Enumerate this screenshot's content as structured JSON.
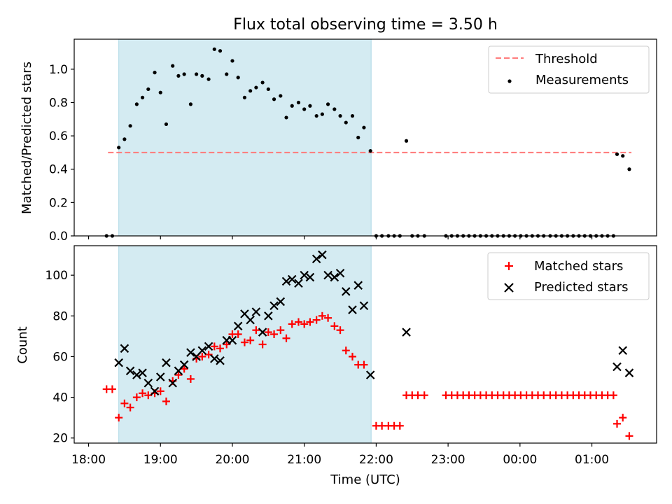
{
  "title": "Flux total observing time = 3.50 h",
  "colors": {
    "observing_window": "#add8e6",
    "threshold": "#ff7f7f",
    "measurements": "#000000",
    "matched": "#ff0000",
    "predicted": "#000000"
  },
  "chart_data": [
    {
      "type": "scatter",
      "ylabel": "Matched/Predicted stars",
      "xlabel": "",
      "xlim": [
        17.8,
        25.9
      ],
      "ylim": [
        0,
        1.18
      ],
      "yticks": [
        "0.0",
        "0.2",
        "0.4",
        "0.6",
        "0.8",
        "1.0"
      ],
      "legend_position": "top-right",
      "observing_window": [
        18.42,
        21.93
      ],
      "threshold": {
        "name": "Threshold",
        "value": 0.5,
        "x_range": [
          18.27,
          25.55
        ],
        "style": "dashed"
      },
      "series": [
        {
          "name": "Measurements",
          "marker": "dot",
          "points": [
            [
              18.25,
              0.0
            ],
            [
              18.33,
              0.0
            ],
            [
              18.42,
              0.53
            ],
            [
              18.5,
              0.58
            ],
            [
              18.58,
              0.66
            ],
            [
              18.67,
              0.79
            ],
            [
              18.75,
              0.83
            ],
            [
              18.83,
              0.88
            ],
            [
              18.92,
              0.98
            ],
            [
              19.0,
              0.86
            ],
            [
              19.08,
              0.67
            ],
            [
              19.17,
              1.02
            ],
            [
              19.25,
              0.96
            ],
            [
              19.33,
              0.97
            ],
            [
              19.42,
              0.79
            ],
            [
              19.5,
              0.97
            ],
            [
              19.58,
              0.96
            ],
            [
              19.67,
              0.94
            ],
            [
              19.75,
              1.12
            ],
            [
              19.83,
              1.11
            ],
            [
              19.92,
              0.97
            ],
            [
              20.0,
              1.05
            ],
            [
              20.08,
              0.95
            ],
            [
              20.17,
              0.83
            ],
            [
              20.25,
              0.87
            ],
            [
              20.33,
              0.89
            ],
            [
              20.42,
              0.92
            ],
            [
              20.5,
              0.88
            ],
            [
              20.58,
              0.82
            ],
            [
              20.67,
              0.84
            ],
            [
              20.75,
              0.71
            ],
            [
              20.83,
              0.78
            ],
            [
              20.92,
              0.8
            ],
            [
              21.0,
              0.76
            ],
            [
              21.08,
              0.78
            ],
            [
              21.17,
              0.72
            ],
            [
              21.25,
              0.73
            ],
            [
              21.33,
              0.79
            ],
            [
              21.42,
              0.76
            ],
            [
              21.5,
              0.72
            ],
            [
              21.58,
              0.68
            ],
            [
              21.67,
              0.72
            ],
            [
              21.75,
              0.59
            ],
            [
              21.83,
              0.65
            ],
            [
              21.92,
              0.51
            ],
            [
              22.0,
              0.0
            ],
            [
              22.08,
              0.0
            ],
            [
              22.17,
              0.0
            ],
            [
              22.25,
              0.0
            ],
            [
              22.33,
              0.0
            ],
            [
              22.42,
              0.57
            ],
            [
              22.5,
              0.0
            ],
            [
              22.58,
              0.0
            ],
            [
              22.67,
              0.0
            ],
            [
              22.97,
              0.0
            ],
            [
              23.05,
              0.0
            ],
            [
              23.13,
              0.0
            ],
            [
              23.21,
              0.0
            ],
            [
              23.29,
              0.0
            ],
            [
              23.37,
              0.0
            ],
            [
              23.45,
              0.0
            ],
            [
              23.53,
              0.0
            ],
            [
              23.61,
              0.0
            ],
            [
              23.69,
              0.0
            ],
            [
              23.77,
              0.0
            ],
            [
              23.85,
              0.0
            ],
            [
              23.93,
              0.0
            ],
            [
              24.01,
              0.0
            ],
            [
              24.09,
              0.0
            ],
            [
              24.17,
              0.0
            ],
            [
              24.25,
              0.0
            ],
            [
              24.33,
              0.0
            ],
            [
              24.42,
              0.0
            ],
            [
              24.5,
              0.0
            ],
            [
              24.58,
              0.0
            ],
            [
              24.66,
              0.0
            ],
            [
              24.74,
              0.0
            ],
            [
              24.82,
              0.0
            ],
            [
              24.9,
              0.0
            ],
            [
              24.98,
              0.0
            ],
            [
              25.06,
              0.0
            ],
            [
              25.14,
              0.0
            ],
            [
              25.22,
              0.0
            ],
            [
              25.3,
              0.0
            ],
            [
              25.35,
              0.49
            ],
            [
              25.43,
              0.48
            ],
            [
              25.52,
              0.4
            ]
          ]
        }
      ]
    },
    {
      "type": "scatter",
      "xlabel": "Time (UTC)",
      "ylabel": "Count",
      "xlim": [
        17.8,
        25.9
      ],
      "ylim": [
        17.5,
        114.5
      ],
      "yticks": [
        "20",
        "40",
        "60",
        "80",
        "100"
      ],
      "xtick_values": [
        18,
        19,
        20,
        21,
        22,
        23,
        24,
        25
      ],
      "xticks": [
        "18:00",
        "19:00",
        "20:00",
        "21:00",
        "22:00",
        "23:00",
        "00:00",
        "01:00"
      ],
      "legend_position": "top-right",
      "observing_window": [
        18.42,
        21.93
      ],
      "series": [
        {
          "name": "Matched stars",
          "marker": "plus",
          "points": [
            [
              18.25,
              44
            ],
            [
              18.33,
              44
            ],
            [
              18.42,
              30
            ],
            [
              18.5,
              37
            ],
            [
              18.58,
              35
            ],
            [
              18.67,
              40
            ],
            [
              18.75,
              42
            ],
            [
              18.83,
              41
            ],
            [
              18.92,
              42
            ],
            [
              19.0,
              43
            ],
            [
              19.08,
              38
            ],
            [
              19.17,
              48
            ],
            [
              19.25,
              51
            ],
            [
              19.33,
              54
            ],
            [
              19.42,
              49
            ],
            [
              19.5,
              59
            ],
            [
              19.58,
              60
            ],
            [
              19.67,
              61
            ],
            [
              19.75,
              65
            ],
            [
              19.83,
              64
            ],
            [
              19.92,
              66
            ],
            [
              20.0,
              71
            ],
            [
              20.08,
              71
            ],
            [
              20.17,
              67
            ],
            [
              20.25,
              68
            ],
            [
              20.33,
              73
            ],
            [
              20.42,
              66
            ],
            [
              20.5,
              72
            ],
            [
              20.58,
              71
            ],
            [
              20.67,
              73
            ],
            [
              20.75,
              69
            ],
            [
              20.83,
              76
            ],
            [
              20.92,
              77
            ],
            [
              21.0,
              76
            ],
            [
              21.08,
              77
            ],
            [
              21.17,
              78
            ],
            [
              21.25,
              80
            ],
            [
              21.33,
              79
            ],
            [
              21.42,
              75
            ],
            [
              21.5,
              73
            ],
            [
              21.58,
              63
            ],
            [
              21.67,
              60
            ],
            [
              21.75,
              56
            ],
            [
              21.83,
              56
            ],
            [
              22.0,
              26
            ],
            [
              22.08,
              26
            ],
            [
              22.17,
              26
            ],
            [
              22.25,
              26
            ],
            [
              22.33,
              26
            ],
            [
              22.42,
              41
            ],
            [
              22.5,
              41
            ],
            [
              22.58,
              41
            ],
            [
              22.67,
              41
            ],
            [
              22.97,
              41
            ],
            [
              23.05,
              41
            ],
            [
              23.13,
              41
            ],
            [
              23.21,
              41
            ],
            [
              23.29,
              41
            ],
            [
              23.37,
              41
            ],
            [
              23.45,
              41
            ],
            [
              23.53,
              41
            ],
            [
              23.61,
              41
            ],
            [
              23.69,
              41
            ],
            [
              23.77,
              41
            ],
            [
              23.85,
              41
            ],
            [
              23.93,
              41
            ],
            [
              24.01,
              41
            ],
            [
              24.09,
              41
            ],
            [
              24.17,
              41
            ],
            [
              24.25,
              41
            ],
            [
              24.33,
              41
            ],
            [
              24.42,
              41
            ],
            [
              24.5,
              41
            ],
            [
              24.58,
              41
            ],
            [
              24.66,
              41
            ],
            [
              24.74,
              41
            ],
            [
              24.82,
              41
            ],
            [
              24.9,
              41
            ],
            [
              24.98,
              41
            ],
            [
              25.06,
              41
            ],
            [
              25.14,
              41
            ],
            [
              25.22,
              41
            ],
            [
              25.3,
              41
            ],
            [
              25.35,
              27
            ],
            [
              25.43,
              30
            ],
            [
              25.52,
              21
            ]
          ]
        },
        {
          "name": "Predicted stars",
          "marker": "x",
          "points": [
            [
              18.42,
              57
            ],
            [
              18.5,
              64
            ],
            [
              18.58,
              53
            ],
            [
              18.67,
              51
            ],
            [
              18.75,
              52
            ],
            [
              18.83,
              47
            ],
            [
              18.92,
              43
            ],
            [
              19.0,
              50
            ],
            [
              19.08,
              57
            ],
            [
              19.17,
              47
            ],
            [
              19.25,
              53
            ],
            [
              19.33,
              56
            ],
            [
              19.42,
              62
            ],
            [
              19.5,
              60
            ],
            [
              19.58,
              63
            ],
            [
              19.67,
              65
            ],
            [
              19.75,
              59
            ],
            [
              19.83,
              58
            ],
            [
              19.92,
              68
            ],
            [
              20.0,
              68
            ],
            [
              20.08,
              75
            ],
            [
              20.17,
              81
            ],
            [
              20.25,
              78
            ],
            [
              20.33,
              82
            ],
            [
              20.42,
              72
            ],
            [
              20.5,
              80
            ],
            [
              20.58,
              85
            ],
            [
              20.67,
              87
            ],
            [
              20.75,
              97
            ],
            [
              20.83,
              98
            ],
            [
              20.92,
              96
            ],
            [
              21.0,
              100
            ],
            [
              21.08,
              99
            ],
            [
              21.17,
              108
            ],
            [
              21.25,
              110
            ],
            [
              21.33,
              100
            ],
            [
              21.42,
              99
            ],
            [
              21.5,
              101
            ],
            [
              21.58,
              92
            ],
            [
              21.67,
              83
            ],
            [
              21.75,
              95
            ],
            [
              21.83,
              85
            ],
            [
              21.92,
              51
            ],
            [
              22.42,
              72
            ],
            [
              25.35,
              55
            ],
            [
              25.43,
              63
            ],
            [
              25.52,
              52
            ]
          ]
        }
      ]
    }
  ]
}
